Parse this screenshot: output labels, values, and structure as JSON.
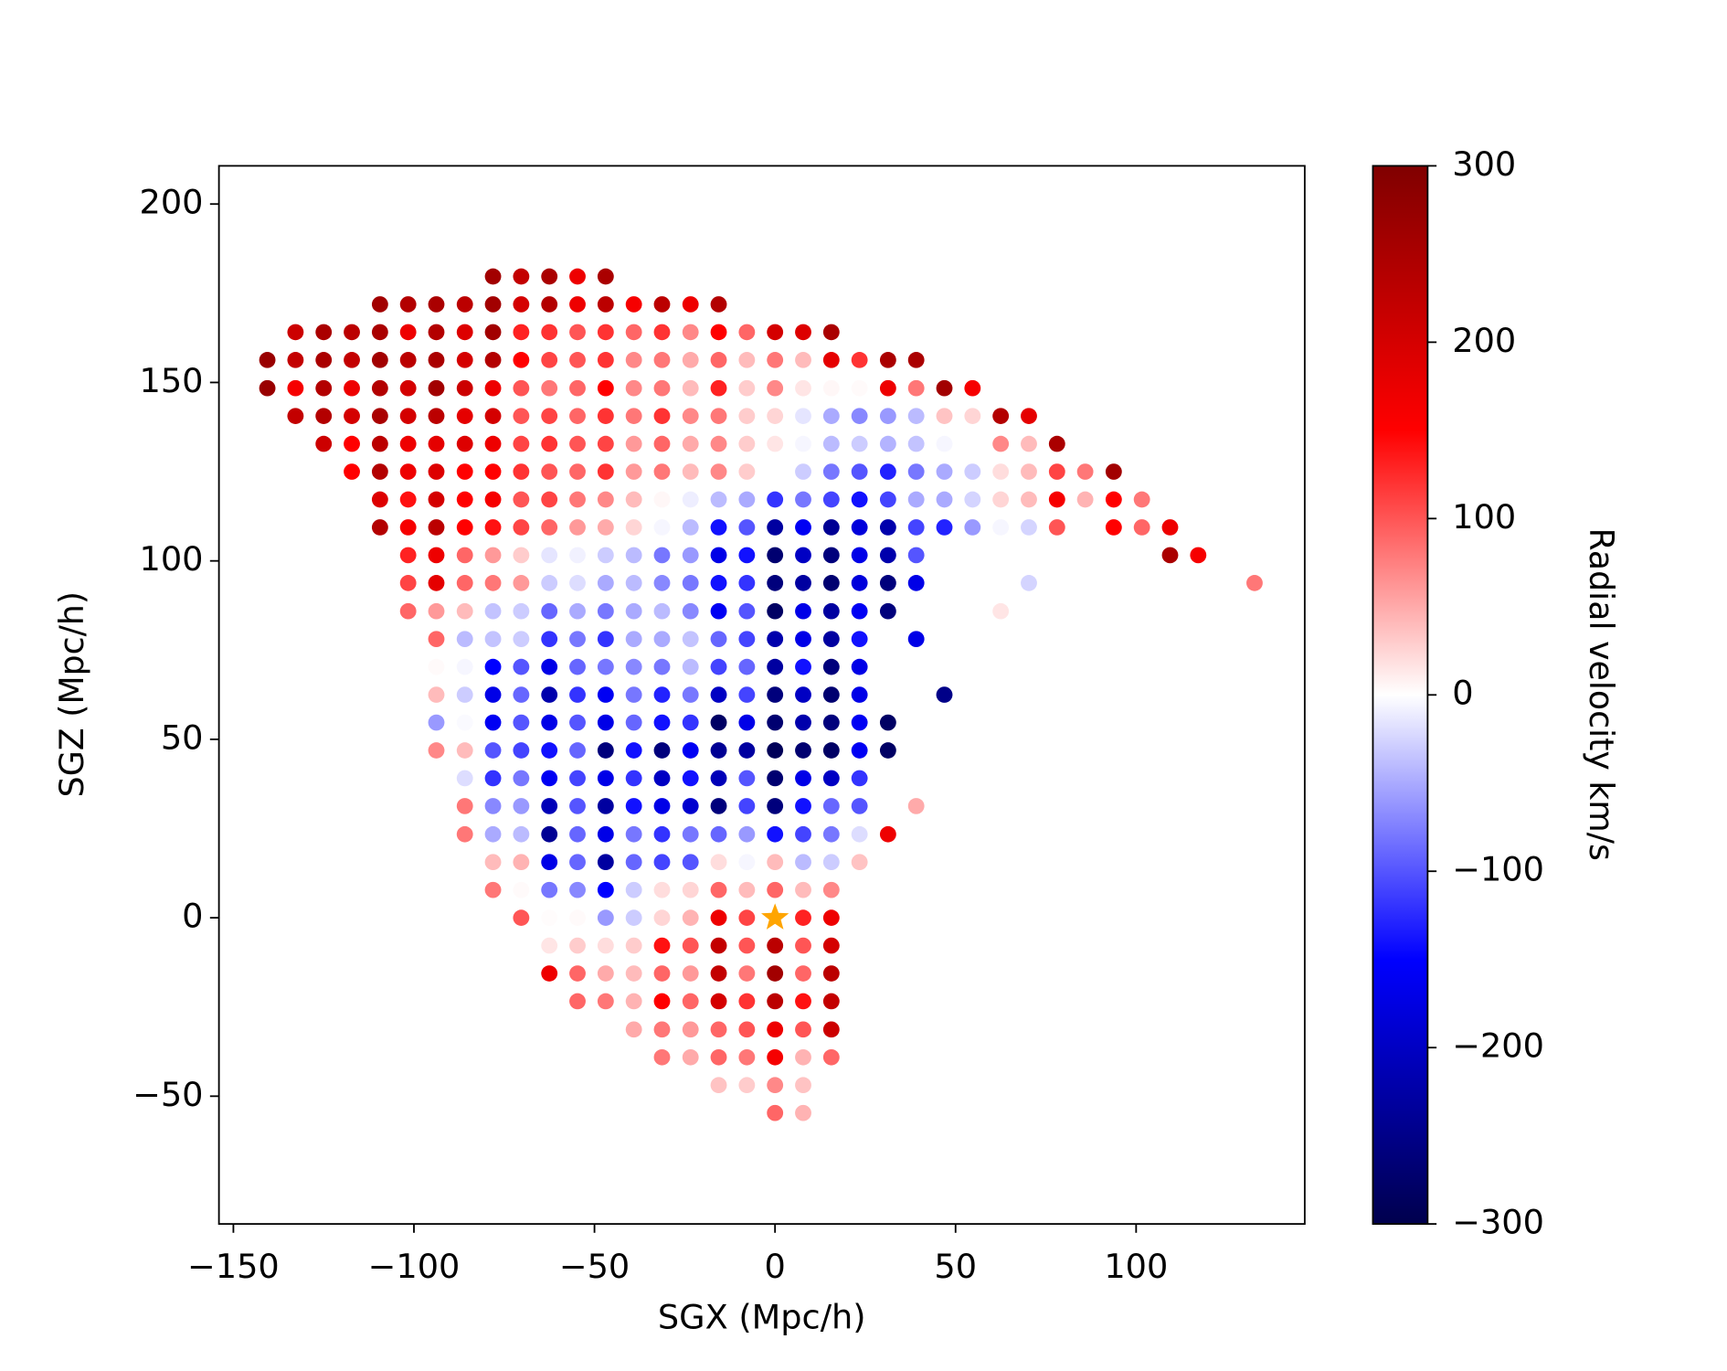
{
  "chart_data": {
    "type": "scatter",
    "xlabel": "SGX (Mpc/h)",
    "ylabel": "SGZ (Mpc/h)",
    "xlim": [
      -154,
      146.7
    ],
    "ylim": [
      -85.8,
      210.7
    ],
    "xticks": [
      {
        "value": -150,
        "label": "−150"
      },
      {
        "value": -100,
        "label": "−100"
      },
      {
        "value": -50,
        "label": "−50"
      },
      0,
      50,
      100
    ],
    "yticks": [
      {
        "value": -50,
        "label": "−50"
      },
      0,
      50,
      100,
      150,
      200
    ],
    "colormap": "seismic",
    "colorbar": {
      "label": "Radial velocity km/s",
      "lim": [
        -300,
        300
      ],
      "ticks": [
        {
          "value": -300,
          "label": "−300"
        },
        {
          "value": -200,
          "label": "−200"
        },
        {
          "value": -100,
          "label": "−100"
        },
        0,
        100,
        200,
        300
      ]
    },
    "highlight": {
      "x": 0,
      "y": 0,
      "color": "#ffa500"
    },
    "x": [
      -78.1,
      -70.3,
      -62.5,
      -54.7,
      -46.9,
      -109.4,
      -101.6,
      -93.8,
      -85.9,
      -78.1,
      -70.3,
      -62.5,
      -54.7,
      -46.9,
      -39.1,
      -31.3,
      -23.4,
      -15.6,
      -132.8,
      -125,
      -117.2,
      -109.4,
      -101.6,
      -93.8,
      -85.9,
      -78.1,
      -70.3,
      -62.5,
      -54.7,
      -46.9,
      -39.1,
      -31.3,
      -23.4,
      -15.6,
      -7.8,
      0,
      7.8,
      15.6,
      -140.6,
      -132.8,
      -125,
      -117.2,
      -109.4,
      -101.6,
      -93.8,
      -85.9,
      -78.1,
      -70.3,
      -62.5,
      -54.7,
      -46.9,
      -39.1,
      -31.3,
      -23.4,
      -15.6,
      -7.8,
      0,
      7.8,
      15.6,
      23.4,
      31.3,
      39.1,
      -140.6,
      -132.8,
      -125,
      -117.2,
      -109.4,
      -101.6,
      -93.8,
      -85.9,
      -78.1,
      -70.3,
      -62.5,
      -54.7,
      -46.9,
      -39.1,
      -31.3,
      -23.4,
      -15.6,
      -7.8,
      0,
      7.8,
      15.6,
      23.4,
      31.3,
      39.1,
      46.9,
      54.7,
      -132.8,
      -125,
      -117.2,
      -109.4,
      -101.6,
      -93.8,
      -85.9,
      -78.1,
      -70.3,
      -62.5,
      -54.7,
      -46.9,
      -39.1,
      -31.3,
      -23.4,
      -15.6,
      -7.8,
      0,
      7.8,
      15.6,
      23.4,
      31.3,
      39.1,
      46.9,
      54.7,
      62.5,
      70.3,
      -125,
      -117.2,
      -109.4,
      -101.6,
      -93.8,
      -85.9,
      -78.1,
      -70.3,
      -62.5,
      -54.7,
      -46.9,
      -39.1,
      -31.3,
      -23.4,
      -15.6,
      -7.8,
      0,
      7.8,
      15.6,
      23.4,
      31.3,
      39.1,
      46.9,
      54.7,
      62.5,
      70.3,
      78.1,
      -117.2,
      -109.4,
      -101.6,
      -93.8,
      -85.9,
      -78.1,
      -70.3,
      -62.5,
      -54.7,
      -46.9,
      -39.1,
      -31.3,
      -23.4,
      -15.6,
      -7.8,
      0,
      7.8,
      15.6,
      23.4,
      31.3,
      39.1,
      46.9,
      54.7,
      62.5,
      70.3,
      78.1,
      85.9,
      93.8,
      -109.4,
      -101.6,
      -93.8,
      -85.9,
      -78.1,
      -70.3,
      -62.5,
      -54.7,
      -46.9,
      -39.1,
      -31.3,
      -23.4,
      -15.6,
      -7.8,
      0,
      7.8,
      15.6,
      23.4,
      31.3,
      39.1,
      46.9,
      54.7,
      62.5,
      70.3,
      78.1,
      85.9,
      93.8,
      101.6,
      -109.4,
      -101.6,
      -93.8,
      -85.9,
      -78.1,
      -70.3,
      -62.5,
      -54.7,
      -46.9,
      -39.1,
      -31.3,
      -23.4,
      -15.6,
      -7.8,
      0,
      7.8,
      15.6,
      23.4,
      31.3,
      39.1,
      46.9,
      54.7,
      62.5,
      70.3,
      78.1,
      93.8,
      101.6,
      109.4,
      -101.6,
      -93.8,
      -85.9,
      -78.1,
      -70.3,
      -62.5,
      -54.7,
      -46.9,
      -39.1,
      -31.3,
      -23.4,
      -15.6,
      -7.8,
      0,
      7.8,
      15.6,
      23.4,
      31.3,
      39.1,
      109.4,
      117.2,
      -101.6,
      -93.8,
      -85.9,
      -78.1,
      -70.3,
      -62.5,
      -54.7,
      -46.9,
      -39.1,
      -31.3,
      -23.4,
      -15.6,
      -7.8,
      0,
      7.8,
      15.6,
      23.4,
      31.3,
      39.1,
      70.3,
      132.8,
      -101.6,
      -93.8,
      -85.9,
      -78.1,
      -70.3,
      -62.5,
      -54.7,
      -46.9,
      -39.1,
      -31.3,
      -23.4,
      -15.6,
      -7.8,
      0,
      7.8,
      15.6,
      23.4,
      31.3,
      62.5,
      -93.8,
      -85.9,
      -78.1,
      -70.3,
      -62.5,
      -54.7,
      -46.9,
      -39.1,
      -31.3,
      -23.4,
      -15.6,
      -7.8,
      0,
      7.8,
      15.6,
      23.4,
      39.1,
      -93.8,
      -85.9,
      -78.1,
      -70.3,
      -62.5,
      -54.7,
      -46.9,
      -39.1,
      -31.3,
      -23.4,
      -15.6,
      -7.8,
      0,
      7.8,
      15.6,
      23.4,
      -93.8,
      -85.9,
      -78.1,
      -70.3,
      -62.5,
      -54.7,
      -46.9,
      -39.1,
      -31.3,
      -23.4,
      -15.6,
      -7.8,
      0,
      7.8,
      15.6,
      23.4,
      46.9,
      -93.8,
      -85.9,
      -78.1,
      -70.3,
      -62.5,
      -54.7,
      -46.9,
      -39.1,
      -31.3,
      -23.4,
      -15.6,
      -7.8,
      0,
      7.8,
      15.6,
      23.4,
      31.3,
      -93.8,
      -85.9,
      -78.1,
      -70.3,
      -62.5,
      -54.7,
      -46.9,
      -39.1,
      -31.3,
      -23.4,
      -15.6,
      -7.8,
      0,
      7.8,
      15.6,
      23.4,
      31.3,
      -85.9,
      -78.1,
      -70.3,
      -62.5,
      -54.7,
      -46.9,
      -39.1,
      -31.3,
      -23.4,
      -15.6,
      -7.8,
      0,
      7.8,
      15.6,
      23.4,
      -85.9,
      -78.1,
      -70.3,
      -62.5,
      -54.7,
      -46.9,
      -39.1,
      -31.3,
      -23.4,
      -15.6,
      -7.8,
      0,
      7.8,
      15.6,
      23.4,
      39.1,
      -85.9,
      -78.1,
      -70.3,
      -62.5,
      -54.7,
      -46.9,
      -39.1,
      -31.3,
      -23.4,
      -15.6,
      -7.8,
      0,
      7.8,
      15.6,
      23.4,
      31.3,
      -78.1,
      -70.3,
      -62.5,
      -54.7,
      -46.9,
      -39.1,
      -31.3,
      -23.4,
      -15.6,
      -7.8,
      0,
      7.8,
      15.6,
      23.4,
      -78.1,
      -70.3,
      -62.5,
      -54.7,
      -46.9,
      -39.1,
      -31.3,
      -23.4,
      -15.6,
      -7.8,
      0,
      7.8,
      15.6,
      -70.3,
      -62.5,
      -54.7,
      -46.9,
      -39.1,
      -31.3,
      -23.4,
      -15.6,
      -7.8,
      7.8,
      15.6,
      -62.5,
      -54.7,
      -46.9,
      -39.1,
      -31.3,
      -23.4,
      -15.6,
      -7.8,
      0,
      7.8,
      15.6,
      -62.5,
      -54.7,
      -46.9,
      -39.1,
      -31.3,
      -23.4,
      -15.6,
      -7.8,
      0,
      7.8,
      15.6,
      -54.7,
      -46.9,
      -39.1,
      -31.3,
      -23.4,
      -15.6,
      -7.8,
      0,
      7.8,
      15.6,
      -39.1,
      -31.3,
      -23.4,
      -15.6,
      -7.8,
      0,
      7.8,
      15.6,
      -31.3,
      -23.4,
      -15.6,
      -7.8,
      0,
      7.8,
      15.6,
      -15.6,
      -7.8,
      0,
      7.8,
      0,
      7.8
    ],
    "values": [
      179.7,
      179.7,
      179.7,
      179.7,
      179.7,
      171.9,
      171.9,
      171.9,
      171.9,
      171.9,
      171.9,
      171.9,
      171.9,
      171.9,
      171.9,
      171.9,
      171.9,
      171.9,
      164.1,
      164.1,
      164.1,
      164.1,
      164.1,
      164.1,
      164.1,
      164.1,
      164.1,
      164.1,
      164.1,
      164.1,
      164.1,
      164.1,
      164.1,
      164.1,
      164.1,
      164.1,
      164.1,
      164.1,
      156.3,
      156.3,
      156.3,
      156.3,
      156.3,
      156.3,
      156.3,
      156.3,
      156.3,
      156.3,
      156.3,
      156.3,
      156.3,
      156.3,
      156.3,
      156.3,
      156.3,
      156.3,
      156.3,
      156.3,
      156.3,
      156.3,
      156.3,
      156.3,
      148.4,
      148.4,
      148.4,
      148.4,
      148.4,
      148.4,
      148.4,
      148.4,
      148.4,
      148.4,
      148.4,
      148.4,
      148.4,
      148.4,
      148.4,
      148.4,
      148.4,
      148.4,
      148.4,
      148.4,
      148.4,
      148.4,
      148.4,
      148.4,
      148.4,
      148.4,
      140.6,
      140.6,
      140.6,
      140.6,
      140.6,
      140.6,
      140.6,
      140.6,
      140.6,
      140.6,
      140.6,
      140.6,
      140.6,
      140.6,
      140.6,
      140.6,
      140.6,
      140.6,
      140.6,
      140.6,
      140.6,
      140.6,
      140.6,
      140.6,
      140.6,
      140.6,
      140.6,
      132.8,
      132.8,
      132.8,
      132.8,
      132.8,
      132.8,
      132.8,
      132.8,
      132.8,
      132.8,
      132.8,
      132.8,
      132.8,
      132.8,
      132.8,
      132.8,
      132.8,
      132.8,
      132.8,
      132.8,
      132.8,
      132.8,
      132.8,
      132.8,
      132.8,
      132.8,
      132.8,
      125,
      125,
      125,
      125,
      125,
      125,
      125,
      125,
      125,
      125,
      125,
      125,
      125,
      125,
      125,
      125,
      125,
      125,
      125,
      125,
      125,
      125,
      125,
      125,
      125,
      125,
      125,
      125,
      117.2,
      117.2,
      117.2,
      117.2,
      117.2,
      117.2,
      117.2,
      117.2,
      117.2,
      117.2,
      117.2,
      117.2,
      117.2,
      117.2,
      117.2,
      117.2,
      117.2,
      117.2,
      117.2,
      117.2,
      117.2,
      117.2,
      117.2,
      117.2,
      117.2,
      117.2,
      117.2,
      117.2,
      109.4,
      109.4,
      109.4,
      109.4,
      109.4,
      109.4,
      109.4,
      109.4,
      109.4,
      109.4,
      109.4,
      109.4,
      109.4,
      109.4,
      109.4,
      109.4,
      109.4,
      109.4,
      109.4,
      109.4,
      109.4,
      109.4,
      109.4,
      109.4,
      109.4,
      109.4,
      109.4,
      109.4,
      101.6,
      101.6,
      101.6,
      101.6,
      101.6,
      101.6,
      101.6,
      101.6,
      101.6,
      101.6,
      101.6,
      101.6,
      101.6,
      101.6,
      101.6,
      101.6,
      101.6,
      101.6,
      101.6,
      101.6,
      101.6,
      93.8,
      93.8,
      93.8,
      93.8,
      93.8,
      93.8,
      93.8,
      93.8,
      93.8,
      93.8,
      93.8,
      93.8,
      93.8,
      93.8,
      93.8,
      93.8,
      93.8,
      93.8,
      93.8,
      93.8,
      93.8,
      85.9,
      85.9,
      85.9,
      85.9,
      85.9,
      85.9,
      85.9,
      85.9,
      85.9,
      85.9,
      85.9,
      85.9,
      85.9,
      85.9,
      85.9,
      85.9,
      85.9,
      85.9,
      85.9,
      78.1,
      78.1,
      78.1,
      78.1,
      78.1,
      78.1,
      78.1,
      78.1,
      78.1,
      78.1,
      78.1,
      78.1,
      78.1,
      78.1,
      78.1,
      78.1,
      78.1,
      70.3,
      70.3,
      70.3,
      70.3,
      70.3,
      70.3,
      70.3,
      70.3,
      70.3,
      70.3,
      70.3,
      70.3,
      70.3,
      70.3,
      70.3,
      70.3,
      62.5,
      62.5,
      62.5,
      62.5,
      62.5,
      62.5,
      62.5,
      62.5,
      62.5,
      62.5,
      62.5,
      62.5,
      62.5,
      62.5,
      62.5,
      62.5,
      62.5,
      54.7,
      54.7,
      54.7,
      54.7,
      54.7,
      54.7,
      54.7,
      54.7,
      54.7,
      54.7,
      54.7,
      54.7,
      54.7,
      54.7,
      54.7,
      54.7,
      54.7,
      46.9,
      46.9,
      46.9,
      46.9,
      46.9,
      46.9,
      46.9,
      46.9,
      46.9,
      46.9,
      46.9,
      46.9,
      46.9,
      46.9,
      46.9,
      46.9,
      46.9,
      39.1,
      39.1,
      39.1,
      39.1,
      39.1,
      39.1,
      39.1,
      39.1,
      39.1,
      39.1,
      39.1,
      39.1,
      39.1,
      39.1,
      39.1,
      31.3,
      31.3,
      31.3,
      31.3,
      31.3,
      31.3,
      31.3,
      31.3,
      31.3,
      31.3,
      31.3,
      31.3,
      31.3,
      31.3,
      31.3,
      31.3,
      23.4,
      23.4,
      23.4,
      23.4,
      23.4,
      23.4,
      23.4,
      23.4,
      23.4,
      23.4,
      23.4,
      23.4,
      23.4,
      23.4,
      23.4,
      23.4,
      15.6,
      15.6,
      15.6,
      15.6,
      15.6,
      15.6,
      15.6,
      15.6,
      15.6,
      15.6,
      15.6,
      15.6,
      15.6,
      15.6,
      7.8,
      7.8,
      7.8,
      7.8,
      7.8,
      7.8,
      7.8,
      7.8,
      7.8,
      7.8,
      7.8,
      7.8,
      7.8,
      0,
      0,
      0,
      0,
      0,
      0,
      0,
      0,
      0,
      0,
      0,
      -7.8,
      -7.8,
      -7.8,
      -7.8,
      -7.8,
      -7.8,
      -7.8,
      -7.8,
      -7.8,
      -7.8,
      -7.8,
      -15.6,
      -15.6,
      -15.6,
      -15.6,
      -15.6,
      -15.6,
      -15.6,
      -15.6,
      -15.6,
      -15.6,
      -15.6,
      -23.4,
      -23.4,
      -23.4,
      -23.4,
      -23.4,
      -23.4,
      -23.4,
      -23.4,
      -23.4,
      -23.4,
      -31.3,
      -31.3,
      -31.3,
      -31.3,
      -31.3,
      -31.3,
      -31.3,
      -31.3,
      -39.1,
      -39.1,
      -39.1,
      -39.1,
      -39.1,
      -39.1,
      -39.1,
      -46.9,
      -46.9,
      -46.9,
      -46.9,
      -54.7,
      -54.7
    ],
    "velocity": [
      260,
      220,
      250,
      170,
      250,
      260,
      240,
      250,
      230,
      260,
      200,
      240,
      170,
      230,
      160,
      230,
      170,
      240,
      210,
      250,
      230,
      250,
      170,
      240,
      190,
      260,
      130,
      120,
      100,
      120,
      90,
      120,
      70,
      150,
      90,
      200,
      190,
      250,
      270,
      220,
      250,
      220,
      260,
      230,
      250,
      200,
      240,
      150,
      110,
      100,
      120,
      70,
      80,
      50,
      90,
      40,
      80,
      40,
      180,
      120,
      250,
      250,
      270,
      160,
      240,
      170,
      240,
      200,
      260,
      210,
      170,
      100,
      80,
      90,
      150,
      70,
      80,
      40,
      130,
      30,
      70,
      15,
      5,
      3,
      170,
      80,
      260,
      160,
      220,
      240,
      200,
      250,
      200,
      230,
      180,
      200,
      100,
      110,
      90,
      120,
      80,
      120,
      70,
      80,
      30,
      25,
      -15,
      -50,
      -70,
      -60,
      -40,
      35,
      25,
      240,
      180,
      210,
      150,
      230,
      170,
      180,
      190,
      170,
      110,
      120,
      100,
      110,
      60,
      90,
      50,
      70,
      30,
      15,
      -5,
      -40,
      -30,
      -45,
      -35,
      -5,
      0,
      70,
      40,
      250,
      150,
      240,
      170,
      190,
      150,
      150,
      120,
      100,
      90,
      120,
      60,
      80,
      40,
      70,
      30,
      0,
      -30,
      -80,
      -100,
      -130,
      -80,
      -50,
      -30,
      20,
      40,
      110,
      80,
      260,
      190,
      140,
      200,
      150,
      160,
      100,
      110,
      80,
      70,
      40,
      5,
      -10,
      -40,
      -50,
      -120,
      -80,
      -110,
      -140,
      -110,
      -50,
      -50,
      -25,
      25,
      40,
      160,
      45,
      150,
      80,
      240,
      160,
      230,
      150,
      140,
      110,
      90,
      60,
      50,
      25,
      -5,
      -40,
      -140,
      -100,
      -230,
      -160,
      -240,
      -180,
      -220,
      -110,
      -130,
      -60,
      -5,
      -25,
      100,
      150,
      90,
      170,
      130,
      170,
      90,
      60,
      30,
      -15,
      -8,
      -30,
      -40,
      -80,
      -60,
      -170,
      -140,
      -270,
      -200,
      -260,
      -170,
      -220,
      -100,
      250,
      160,
      110,
      180,
      90,
      80,
      60,
      -30,
      -20,
      -50,
      -40,
      -70,
      -80,
      -140,
      -120,
      -260,
      -230,
      -270,
      -180,
      -260,
      -170,
      -25,
      80,
      90,
      60,
      40,
      -35,
      -30,
      -90,
      -50,
      -80,
      -50,
      -40,
      -70,
      -160,
      -100,
      -280,
      -170,
      -230,
      -160,
      -260,
      15,
      90,
      -40,
      -35,
      -30,
      -120,
      -80,
      -120,
      -50,
      -50,
      -35,
      -90,
      -110,
      -220,
      -170,
      -230,
      -140,
      -170,
      3,
      -5,
      -150,
      -100,
      -170,
      -90,
      -80,
      -70,
      -80,
      -40,
      -110,
      -90,
      -230,
      -140,
      -260,
      -170,
      40,
      -30,
      -170,
      -90,
      -220,
      -120,
      -160,
      -80,
      -130,
      -80,
      -200,
      -110,
      -260,
      -200,
      -270,
      -170,
      -250,
      -60,
      -3,
      -160,
      -100,
      -170,
      -100,
      -170,
      -90,
      -140,
      -120,
      -280,
      -170,
      -270,
      -220,
      -260,
      -160,
      -280,
      70,
      40,
      -100,
      -110,
      -140,
      -90,
      -260,
      -140,
      -260,
      -160,
      -240,
      -230,
      -290,
      -270,
      -280,
      -160,
      -280,
      -20,
      -120,
      -80,
      -160,
      -110,
      -170,
      -120,
      -200,
      -140,
      -210,
      -100,
      -270,
      -170,
      -200,
      -120,
      80,
      -70,
      -60,
      -210,
      -100,
      -230,
      -140,
      -170,
      -190,
      -260,
      -110,
      -260,
      -140,
      -90,
      -100,
      50,
      80,
      -50,
      -40,
      -240,
      -90,
      -170,
      -80,
      -120,
      -80,
      -90,
      -60,
      -140,
      -110,
      -80,
      -20,
      170,
      40,
      45,
      -170,
      -90,
      -230,
      -90,
      -110,
      -100,
      20,
      -5,
      40,
      -40,
      -30,
      35,
      80,
      3,
      -80,
      -70,
      -150,
      -30,
      20,
      25,
      90,
      40,
      90,
      40,
      70,
      100,
      2,
      3,
      -60,
      -30,
      25,
      45,
      170,
      110,
      130,
      170,
      15,
      30,
      20,
      30,
      140,
      100,
      220,
      100,
      230,
      100,
      200,
      170,
      90,
      50,
      40,
      90,
      60,
      220,
      80,
      260,
      90,
      230,
      90,
      80,
      45,
      150,
      90,
      200,
      120,
      230,
      140,
      220,
      50,
      80,
      60,
      90,
      100,
      170,
      100,
      210,
      80,
      50,
      90,
      80,
      160,
      45,
      90,
      35,
      30,
      70,
      35,
      90,
      45
    ]
  }
}
